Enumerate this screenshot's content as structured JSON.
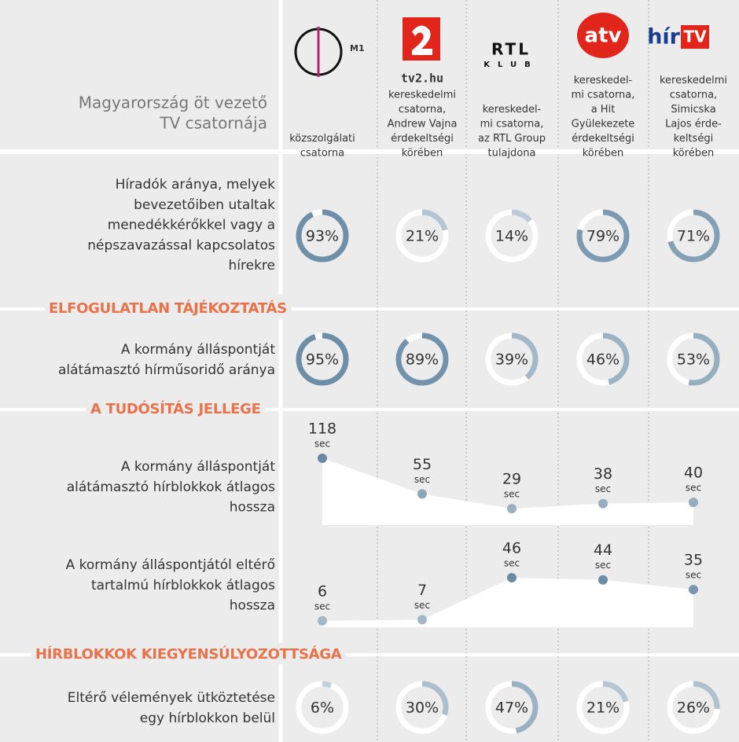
{
  "header": {
    "title": [
      "Magyarország öt vezető",
      "TV csatornája"
    ]
  },
  "channels": [
    {
      "logo": [
        "M1"
      ],
      "description": [
        "közszolgálati",
        "csatorna"
      ]
    },
    {
      "logo": [
        "tv2.hu"
      ],
      "description": [
        "kereskedelmi",
        "csatorna,",
        "Andrew Vajna",
        "érdekeltségi",
        "körében"
      ]
    },
    {
      "logo": [
        "RTL",
        "KLUB"
      ],
      "description": [
        "kereskedel-",
        "mi csatorna,",
        "az RTL Group",
        "tulajdona"
      ]
    },
    {
      "logo": [
        "atv"
      ],
      "description": [
        "kereskedel-",
        "mi csatorna,",
        "a Hit",
        "Gyülekezete",
        "érdekeltségi",
        "körében"
      ]
    },
    {
      "logo": [
        "hír",
        "TV"
      ],
      "description": [
        "kereskedelmi",
        "csatorna,",
        "Simicska",
        "Lajos érde-",
        "keltségi",
        "körében"
      ]
    }
  ],
  "sections": [
    {
      "title": "ELFOGULATLAN TÁJÉKOZTATÁS"
    },
    {
      "title": "A TUDÓSÍTÁS JELLEGE"
    },
    {
      "title": "HÍRBLOKKOK KIEGYENSÚLYOZOTTSÁGA"
    }
  ],
  "metrics": [
    {
      "type": "donut",
      "label": [
        "Híradók aránya, melyek",
        "bevezetőiben utaltak",
        "menedékkérőkkel vagy a",
        "népszavazással kapcsolatos",
        "hírekre"
      ],
      "values": [
        93,
        21,
        14,
        79,
        71
      ],
      "value_labels": [
        "93%",
        "21%",
        "14%",
        "79%",
        "71%"
      ]
    },
    {
      "type": "donut",
      "label": [
        "A kormány álláspontját",
        "alátámasztó hírműsoridő aránya"
      ],
      "values": [
        95,
        89,
        39,
        46,
        53
      ],
      "value_labels": [
        "95%",
        "89%",
        "39%",
        "46%",
        "53%"
      ]
    },
    {
      "type": "line",
      "label": [
        "A kormány álláspontját",
        "alátámasztó hírblokkok átlagos",
        "hossza"
      ],
      "unit": "sec",
      "values": [
        118,
        55,
        29,
        38,
        40
      ]
    },
    {
      "type": "line",
      "label": [
        "A kormány álláspontjától eltérő",
        "tartalmú hírblokkok átlagos",
        "hossza"
      ],
      "unit": "sec",
      "values": [
        6,
        7,
        46,
        44,
        35
      ]
    },
    {
      "type": "donut",
      "label": [
        "Eltérő vélemények ütköztetése",
        "egy hírblokkon belül"
      ],
      "values": [
        6,
        30,
        47,
        21,
        26
      ],
      "value_labels": [
        "6%",
        "30%",
        "47%",
        "21%",
        "26%"
      ]
    }
  ]
}
